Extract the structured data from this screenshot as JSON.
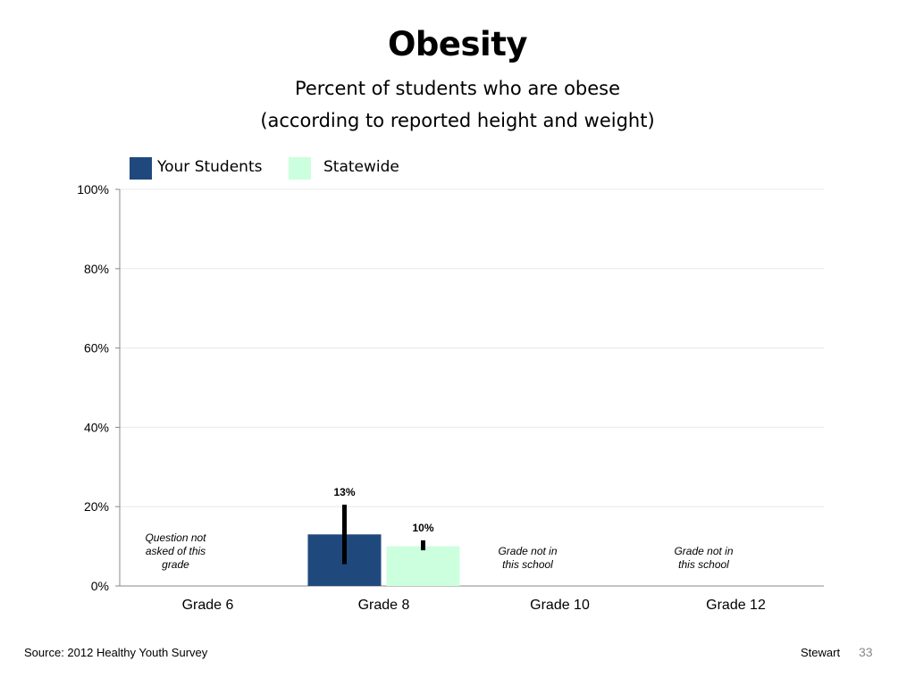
{
  "slide": {
    "title": "Obesity",
    "subtitle_line1": "Percent of students who are obese",
    "subtitle_line2": "(according to reported height and weight)",
    "source": "Source: 2012 Healthy Youth Survey",
    "author": "Stewart",
    "page_number": "33"
  },
  "colors": {
    "your_students": "#1f497d",
    "statewide": "#ccffdd",
    "error_bar": "#000000",
    "gridline": "#e8e8e8",
    "axis": "#888888"
  },
  "legend": {
    "placement": "top-left",
    "items": [
      {
        "label": "Your Students"
      },
      {
        "label": "Statewide"
      }
    ]
  },
  "chart_data": {
    "type": "bar",
    "categories": [
      "Grade 6",
      "Grade 8",
      "Grade 10",
      "Grade 12"
    ],
    "series": [
      {
        "name": "Your Students",
        "values": [
          null,
          13,
          null,
          null
        ],
        "labels": [
          "",
          "13%",
          "",
          ""
        ],
        "error_low": [
          null,
          5.5,
          null,
          null
        ],
        "error_high": [
          null,
          20.5,
          null,
          null
        ]
      },
      {
        "name": "Statewide",
        "values": [
          null,
          10,
          null,
          null
        ],
        "labels": [
          "",
          "10%",
          "",
          ""
        ],
        "error_low": [
          null,
          9,
          null,
          null
        ],
        "error_high": [
          null,
          11.5,
          null,
          null
        ]
      }
    ],
    "annotations": [
      {
        "category": "Grade 6",
        "lines": [
          "Question not",
          "asked of this",
          "grade"
        ]
      },
      {
        "category": "Grade 10",
        "lines": [
          "Grade not in",
          "this school"
        ]
      },
      {
        "category": "Grade 12",
        "lines": [
          "Grade not in",
          "this school"
        ]
      }
    ],
    "yticks": [
      "0%",
      "20%",
      "40%",
      "60%",
      "80%",
      "100%"
    ],
    "ylim": [
      0,
      100
    ],
    "grid": true
  }
}
